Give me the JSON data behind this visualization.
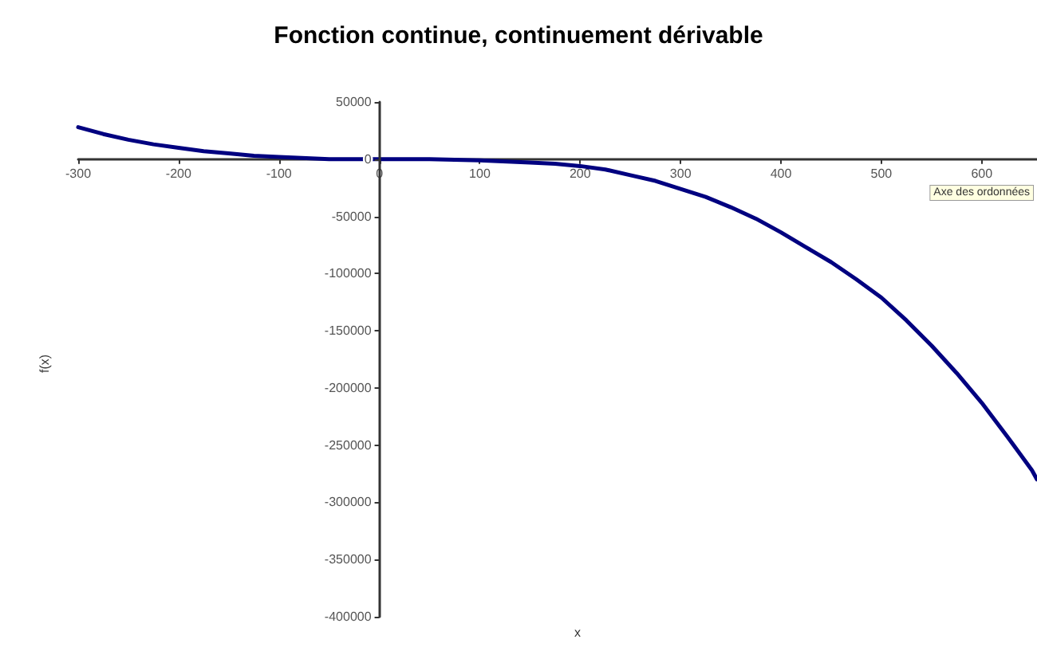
{
  "chart_data": {
    "type": "line",
    "title": "Fonction continue, continuement dérivable",
    "xlabel": "x",
    "ylabel": "f(x)",
    "x": [
      -300,
      -275,
      -250,
      -225,
      -200,
      -175,
      -150,
      -125,
      -100,
      -50,
      0,
      50,
      100,
      150,
      175,
      200,
      225,
      250,
      275,
      300,
      325,
      350,
      375,
      400,
      425,
      450,
      475,
      500,
      525,
      550,
      575,
      600,
      625,
      650,
      655
    ],
    "series": [
      {
        "color": "#000080",
        "values": [
          28000,
          22000,
          17000,
          13000,
          10000,
          7000,
          5000,
          3000,
          2000,
          0,
          0,
          0,
          -1000,
          -3000,
          -4000,
          -6000,
          -9000,
          -14000,
          -19000,
          -26000,
          -33000,
          -42000,
          -52000,
          -64000,
          -77000,
          -90000,
          -105000,
          -121000,
          -141000,
          -163000,
          -187000,
          -213000,
          -242000,
          -272000,
          -280000
        ]
      }
    ],
    "xlim": [
      -300,
      655
    ],
    "xticks": [
      -300,
      -200,
      -100,
      0,
      100,
      200,
      300,
      400,
      500,
      600
    ],
    "ylim": [
      -400000,
      50000
    ],
    "yticks": [
      -400000,
      -350000,
      -300000,
      -250000,
      -200000,
      -150000,
      -100000,
      -50000,
      0,
      50000
    ],
    "marker": "none",
    "line_style": "solid",
    "annotations": [
      "Axe des ordonnées"
    ]
  }
}
